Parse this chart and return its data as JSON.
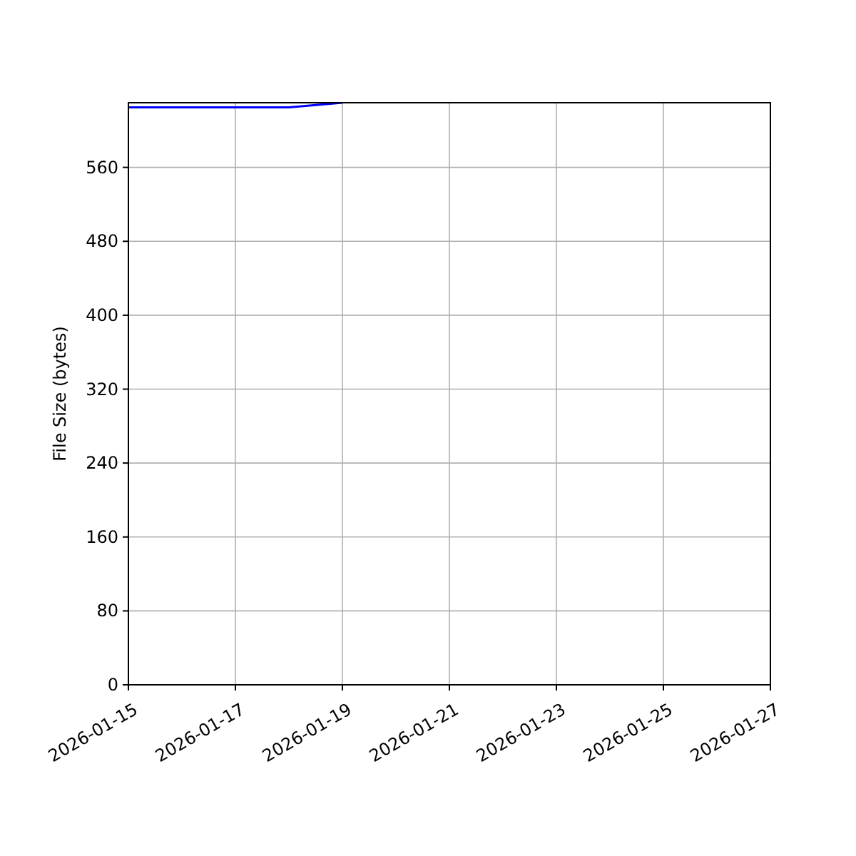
{
  "chart_data": {
    "type": "line",
    "ylabel": "File Size (bytes)",
    "x": [
      "2026-01-15",
      "2026-01-18",
      "2026-01-19"
    ],
    "series": [
      {
        "color": "#0000ff",
        "values": [
          625,
          625,
          630
        ]
      }
    ],
    "xlim": [
      "2026-01-15",
      "2026-01-27"
    ],
    "xticks": [
      "2026-01-15",
      "2026-01-17",
      "2026-01-19",
      "2026-01-21",
      "2026-01-23",
      "2026-01-25",
      "2026-01-27"
    ],
    "ylim": [
      0,
      630
    ],
    "yticks": [
      0,
      80,
      160,
      240,
      320,
      400,
      480,
      560
    ],
    "grid": true
  }
}
